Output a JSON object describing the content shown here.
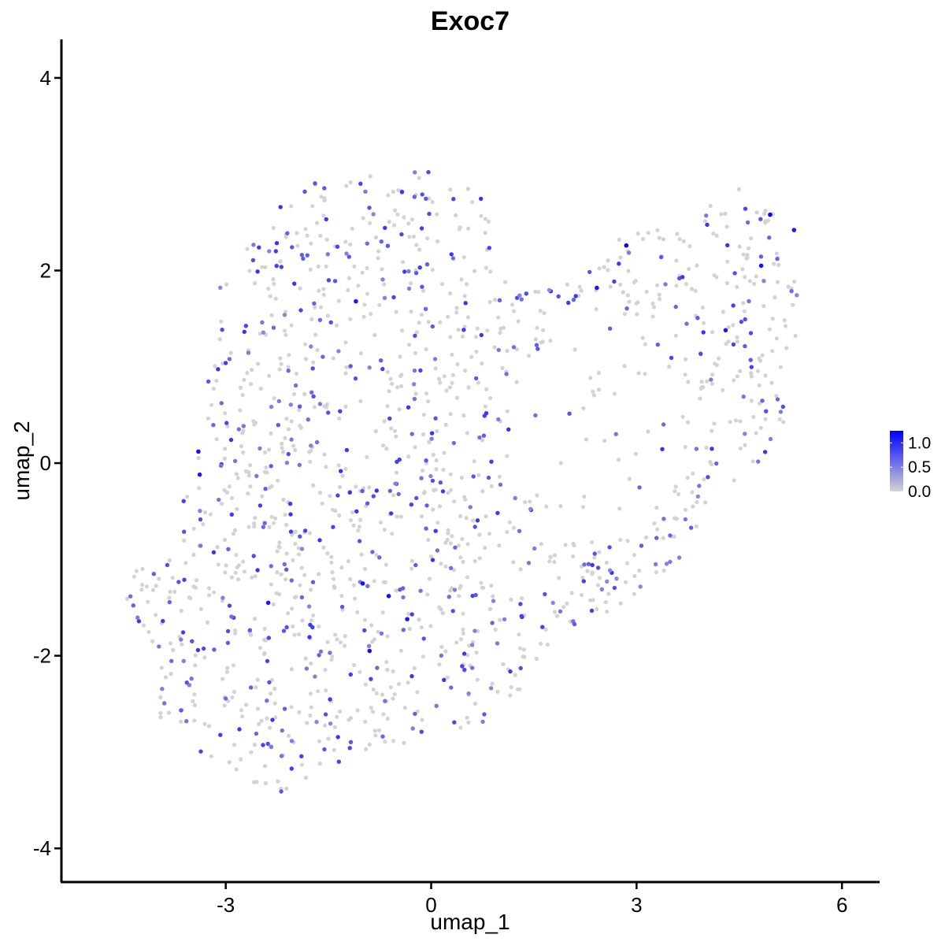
{
  "chart_data": {
    "type": "scatter",
    "title": "Exoc7",
    "xlabel": "umap_1",
    "ylabel": "umap_2",
    "xlim": [
      -5.4,
      6.55
    ],
    "ylim": [
      -4.35,
      4.4
    ],
    "x_ticks": [
      -3,
      0,
      3,
      6
    ],
    "y_ticks": [
      -4,
      -2,
      0,
      2,
      4
    ],
    "x_tick_labels": [
      "-3",
      "0",
      "3",
      "6"
    ],
    "y_tick_labels": [
      "-4",
      "-2",
      "0",
      "2",
      "4"
    ],
    "grid": false,
    "legend": {
      "placement": "right",
      "type": "colorbar",
      "range": [
        0,
        1.25
      ],
      "ticks": [
        0.0,
        0.5,
        1.0
      ],
      "tick_labels": [
        "0.0",
        "0.5",
        "1.0"
      ],
      "low_color": "#d3d3d3",
      "high_color": "#0000ff"
    },
    "highlight_points": [
      {
        "x": -3.4,
        "y": 0.12,
        "value": 1.15
      },
      {
        "x": -3.38,
        "y": -0.12,
        "value": 1.1
      },
      {
        "x": -1.1,
        "y": 1.68,
        "value": 1.1
      },
      {
        "x": -1.0,
        "y": -1.25,
        "value": 1.15
      },
      {
        "x": -0.62,
        "y": -1.38,
        "value": 1.15
      },
      {
        "x": -0.35,
        "y": -1.62,
        "value": 1.1
      },
      {
        "x": -0.9,
        "y": -1.95,
        "value": 1.15
      },
      {
        "x": -2.38,
        "y": -1.45,
        "value": 1.1
      },
      {
        "x": 2.42,
        "y": 1.82,
        "value": 1.1
      },
      {
        "x": 2.85,
        "y": 2.26,
        "value": 1.25
      },
      {
        "x": 4.3,
        "y": 1.38,
        "value": 1.1
      },
      {
        "x": 4.95,
        "y": 2.58,
        "value": 1.2
      },
      {
        "x": 4.82,
        "y": 2.05,
        "value": 1.15
      },
      {
        "x": 5.3,
        "y": 2.42,
        "value": 1.1
      }
    ],
    "cluster_regions": [
      {
        "name_hidden": "left-lobe",
        "polygon": [
          [
            -4.6,
            -1.15
          ],
          [
            -4.2,
            -1.9
          ],
          [
            -4.0,
            -2.6
          ],
          [
            -3.6,
            -3.0
          ],
          [
            -3.0,
            -3.2
          ],
          [
            -2.6,
            -3.35
          ],
          [
            -2.2,
            -3.45
          ],
          [
            -1.6,
            -3.2
          ],
          [
            -1.0,
            -3.0
          ],
          [
            -0.4,
            -2.95
          ],
          [
            0.4,
            -2.85
          ],
          [
            1.0,
            -2.75
          ],
          [
            1.3,
            -2.35
          ],
          [
            1.6,
            -1.95
          ],
          [
            2.2,
            -1.7
          ],
          [
            3.0,
            -1.4
          ],
          [
            3.6,
            -1.05
          ],
          [
            4.2,
            -0.4
          ],
          [
            4.8,
            0.0
          ],
          [
            5.2,
            0.4
          ],
          [
            5.4,
            1.2
          ],
          [
            5.35,
            2.0
          ],
          [
            5.1,
            2.5
          ],
          [
            4.6,
            3.05
          ],
          [
            4.1,
            2.7
          ],
          [
            3.6,
            2.55
          ],
          [
            3.0,
            2.45
          ],
          [
            2.6,
            2.25
          ],
          [
            2.2,
            1.95
          ],
          [
            1.7,
            1.8
          ],
          [
            1.2,
            1.75
          ],
          [
            0.9,
            2.2
          ],
          [
            0.8,
            2.75
          ],
          [
            0.3,
            3.0
          ],
          [
            -0.3,
            3.15
          ],
          [
            -1.0,
            3.05
          ],
          [
            -1.6,
            2.95
          ],
          [
            -2.2,
            2.7
          ],
          [
            -2.8,
            2.3
          ],
          [
            -3.1,
            1.8
          ],
          [
            -3.2,
            1.2
          ],
          [
            -3.3,
            0.6
          ],
          [
            -3.5,
            0.0
          ],
          [
            -3.7,
            -0.6
          ],
          [
            -4.1,
            -1.0
          ]
        ]
      }
    ],
    "point_density": 1500,
    "expression_fraction": 0.3
  }
}
